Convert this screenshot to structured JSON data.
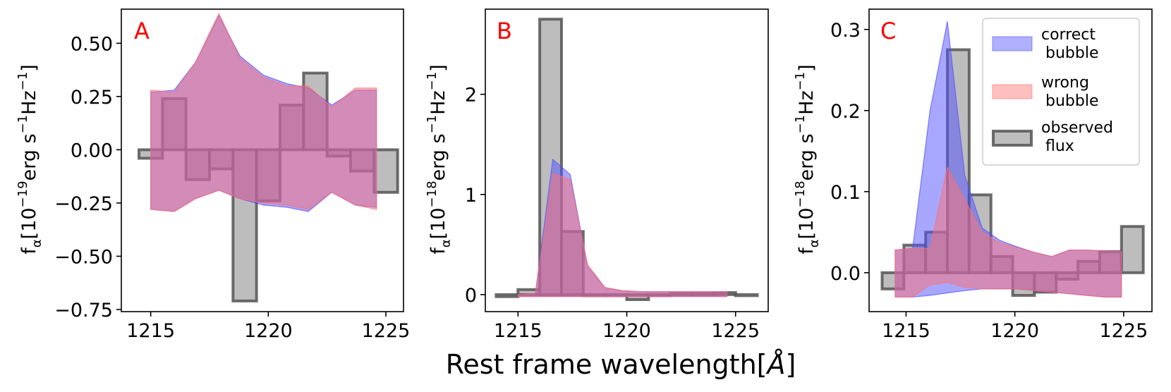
{
  "figure": {
    "xlabel_text": "Rest frame wavelength[",
    "xlabel_unit": "Å",
    "xlabel_close": "]"
  },
  "legend": [
    {
      "label_line1": "correct",
      "label_line2": "bubble",
      "color": "#6666ff"
    },
    {
      "label_line1": "wrong",
      "label_line2": "bubble",
      "color": "#ff8888"
    },
    {
      "label_line1": "observed",
      "label_line2": "flux",
      "color": "#888888"
    }
  ],
  "colors": {
    "correct": "#5050ff",
    "wrong": "#ff7070",
    "observed_fill": "#bdbdbd",
    "observed_edge": "#555555",
    "panel_letter": "#ff0000"
  },
  "chart_data": [
    {
      "type": "area",
      "panel": "A",
      "ylabel_prefix": "f",
      "ylabel_sub": "α",
      "ylabel_main": "[10",
      "ylabel_exp": "−19",
      "ylabel_unit": "erg s",
      "ylabel_exp2": "−1",
      "ylabel_unit2": "Hz",
      "ylabel_exp3": "−1",
      "ylabel_close": "]",
      "xlim": [
        1213.75,
        1225.75
      ],
      "ylim": [
        -0.76,
        0.66
      ],
      "xticks": [
        "1215",
        "1220",
        "1225"
      ],
      "xtick_values": [
        1215,
        1220,
        1225
      ],
      "yticks": [
        "−0.75",
        "−0.50",
        "−0.25",
        "0.00",
        "0.25",
        "0.50"
      ],
      "ytick_values": [
        -0.75,
        -0.5,
        -0.25,
        0.0,
        0.25,
        0.5
      ],
      "observed": {
        "bin_edges": [
          1214.5,
          1215.5,
          1216.5,
          1217.5,
          1218.5,
          1219.5,
          1220.5,
          1221.5,
          1222.5,
          1223.5,
          1224.5,
          1225.5
        ],
        "values": [
          -0.04,
          0.24,
          -0.14,
          -0.09,
          -0.71,
          -0.24,
          0.21,
          0.36,
          -0.03,
          -0.1,
          -0.2,
          -0.26
        ]
      },
      "correct_bubble": {
        "x": [
          1215.0,
          1216.0,
          1216.9,
          1217.9,
          1218.8,
          1219.8,
          1220.8,
          1221.7,
          1222.7,
          1223.7,
          1224.6
        ],
        "upper": [
          0.27,
          0.28,
          0.41,
          0.63,
          0.44,
          0.35,
          0.31,
          0.29,
          0.21,
          0.28,
          0.28
        ],
        "lower": [
          -0.28,
          -0.29,
          -0.23,
          -0.19,
          -0.23,
          -0.26,
          -0.27,
          -0.29,
          -0.2,
          -0.26,
          -0.27
        ]
      },
      "wrong_bubble": {
        "x": [
          1215.0,
          1216.0,
          1216.9,
          1217.9,
          1218.8,
          1219.8,
          1220.8,
          1221.7,
          1222.7,
          1223.7,
          1224.6
        ],
        "upper": [
          0.28,
          0.27,
          0.41,
          0.64,
          0.43,
          0.34,
          0.3,
          0.3,
          0.2,
          0.29,
          0.29
        ],
        "lower": [
          -0.28,
          -0.29,
          -0.23,
          -0.19,
          -0.23,
          -0.25,
          -0.26,
          -0.28,
          -0.2,
          -0.26,
          -0.28
        ]
      }
    },
    {
      "type": "area",
      "panel": "B",
      "ylabel_prefix": "f",
      "ylabel_sub": "α",
      "ylabel_main": "[10",
      "ylabel_exp": "−18",
      "ylabel_unit": "erg s",
      "ylabel_exp2": "−1",
      "ylabel_unit2": "Hz",
      "ylabel_exp3": "−1",
      "ylabel_close": "]",
      "xlim": [
        1213.5,
        1226.5
      ],
      "ylim": [
        -0.17,
        2.85
      ],
      "xticks": [
        "1215",
        "1220",
        "1225"
      ],
      "xtick_values": [
        1215,
        1220,
        1225
      ],
      "yticks": [
        "0",
        "1",
        "2"
      ],
      "ytick_values": [
        0,
        1,
        2
      ],
      "observed": {
        "bin_edges": [
          1214.0,
          1215.0,
          1216.0,
          1217.0,
          1218.0,
          1219.0,
          1220.0,
          1221.0,
          1222.0,
          1223.0,
          1224.0,
          1225.0,
          1226.0
        ],
        "values": [
          -0.02,
          0.05,
          2.75,
          0.63,
          0.0,
          0.0,
          -0.05,
          0.0,
          0.01,
          0.01,
          0.02,
          0.0
        ]
      },
      "correct_bubble": {
        "x": [
          1215.0,
          1215.8,
          1216.6,
          1217.4,
          1218.2,
          1219.0,
          1219.8,
          1220.6,
          1221.4,
          1222.2,
          1223.0,
          1223.8,
          1224.6
        ],
        "upper": [
          0.0,
          0.01,
          1.35,
          1.2,
          0.28,
          0.07,
          0.04,
          0.03,
          0.03,
          0.03,
          0.03,
          0.03,
          0.03
        ],
        "lower": [
          -0.02,
          -0.02,
          -0.02,
          -0.02,
          -0.02,
          -0.02,
          -0.02,
          -0.02,
          -0.02,
          -0.02,
          -0.02,
          -0.02,
          -0.02
        ]
      },
      "wrong_bubble": {
        "x": [
          1215.0,
          1215.8,
          1216.6,
          1217.4,
          1218.2,
          1219.0,
          1219.8,
          1220.6,
          1221.4,
          1222.2,
          1223.0,
          1223.8,
          1224.6
        ],
        "upper": [
          0.0,
          0.01,
          1.21,
          1.15,
          0.3,
          0.07,
          0.04,
          0.03,
          0.03,
          0.03,
          0.03,
          0.03,
          0.03
        ],
        "lower": [
          -0.02,
          -0.02,
          -0.02,
          -0.02,
          -0.02,
          -0.02,
          -0.02,
          -0.02,
          -0.02,
          -0.02,
          -0.02,
          -0.02,
          -0.02
        ]
      }
    },
    {
      "type": "area",
      "panel": "C",
      "ylabel_prefix": "f",
      "ylabel_sub": "α",
      "ylabel_main": "[10",
      "ylabel_exp": "−18",
      "ylabel_unit": "erg s",
      "ylabel_exp2": "−1",
      "ylabel_unit2": "Hz",
      "ylabel_exp3": "−1",
      "ylabel_close": "]",
      "xlim": [
        1213.3,
        1226.3
      ],
      "ylim": [
        -0.048,
        0.325
      ],
      "xticks": [
        "1215",
        "1220",
        "1225"
      ],
      "xtick_values": [
        1215,
        1220,
        1225
      ],
      "yticks": [
        "0.0",
        "0.1",
        "0.2",
        "0.3"
      ],
      "ytick_values": [
        0.0,
        0.1,
        0.2,
        0.3
      ],
      "observed": {
        "bin_edges": [
          1213.9,
          1214.9,
          1215.9,
          1216.9,
          1217.9,
          1218.9,
          1219.9,
          1220.9,
          1221.9,
          1222.9,
          1223.9,
          1224.9,
          1225.9
        ],
        "values": [
          -0.02,
          0.034,
          0.05,
          0.275,
          0.096,
          0.02,
          -0.028,
          -0.024,
          -0.008,
          0.014,
          0.026,
          0.057
        ]
      },
      "correct_bubble": {
        "x": [
          1214.5,
          1215.3,
          1216.1,
          1216.9,
          1217.7,
          1218.5,
          1219.3,
          1220.1,
          1220.9,
          1221.7,
          1222.5,
          1223.3,
          1224.1,
          1224.9
        ],
        "upper": [
          0.028,
          0.03,
          0.2,
          0.31,
          0.12,
          0.055,
          0.04,
          0.032,
          0.025,
          0.02,
          0.028,
          0.028,
          0.027,
          0.026
        ],
        "lower": [
          -0.03,
          -0.03,
          -0.028,
          -0.025,
          -0.022,
          -0.02,
          -0.02,
          -0.02,
          -0.022,
          -0.024,
          -0.026,
          -0.028,
          -0.03,
          -0.03
        ]
      },
      "wrong_bubble": {
        "x": [
          1214.5,
          1215.3,
          1216.1,
          1216.9,
          1217.7,
          1218.5,
          1219.3,
          1220.1,
          1220.9,
          1221.7,
          1222.5,
          1223.3,
          1224.1,
          1224.9
        ],
        "upper": [
          0.028,
          0.03,
          0.03,
          0.13,
          0.09,
          0.05,
          0.037,
          0.031,
          0.025,
          0.02,
          0.028,
          0.028,
          0.027,
          0.026
        ],
        "lower": [
          -0.03,
          -0.03,
          -0.015,
          -0.012,
          -0.018,
          -0.02,
          -0.02,
          -0.02,
          -0.022,
          -0.024,
          -0.026,
          -0.028,
          -0.03,
          -0.03
        ]
      }
    }
  ]
}
